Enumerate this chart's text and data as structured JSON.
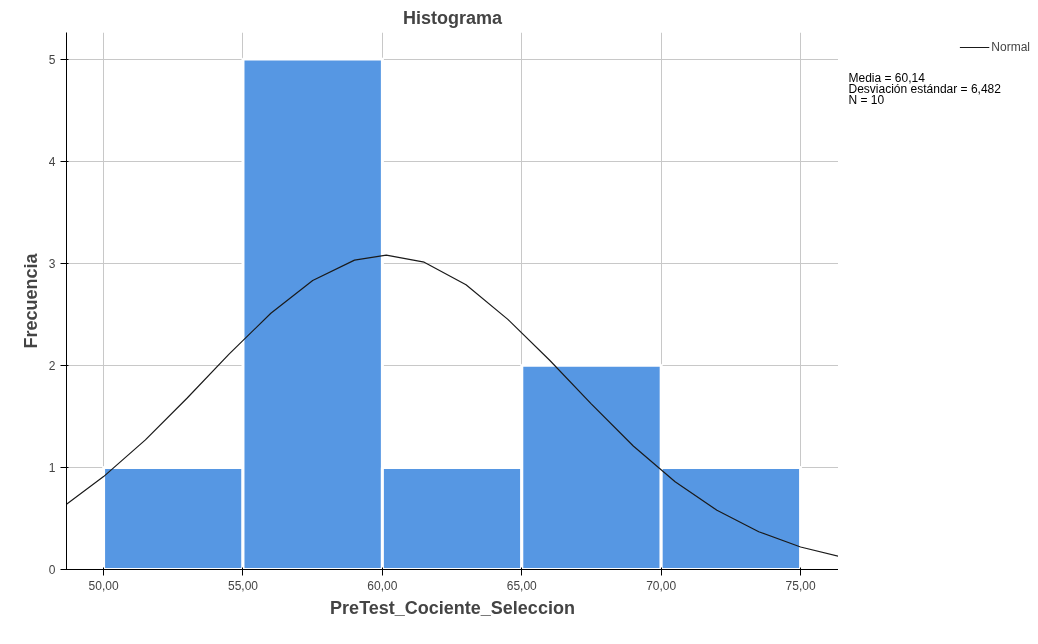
{
  "chart_data": {
    "type": "histogram",
    "title": "Histograma",
    "xlabel": "PreTest_Cociente_Seleccion",
    "ylabel": "Frecuencia",
    "bins": [
      50,
      55,
      60,
      65,
      70,
      75
    ],
    "values": [
      1,
      5,
      1,
      2,
      1
    ],
    "color": "#5697e3",
    "series": [
      {
        "name": "Normal",
        "type": "line",
        "color": "#1a1a1a",
        "x": [
          48.67,
          50,
          51.5,
          53,
          54.5,
          56,
          57.5,
          59,
          60.14,
          61.5,
          63,
          64.5,
          66,
          67.5,
          69,
          70.5,
          72,
          73.5,
          75,
          76.36
        ],
        "values": [
          0.64,
          0.91,
          1.27,
          1.68,
          2.11,
          2.51,
          2.83,
          3.03,
          3.08,
          3.01,
          2.79,
          2.45,
          2.05,
          1.62,
          1.21,
          0.86,
          0.58,
          0.37,
          0.22,
          0.13
        ]
      }
    ],
    "xlim": [
      48.67,
      76.36
    ],
    "ylim": [
      0,
      5.26
    ],
    "xticks": [
      {
        "value": 50,
        "label": "50,00"
      },
      {
        "value": 55,
        "label": "55,00"
      },
      {
        "value": 60,
        "label": "60,00"
      },
      {
        "value": 65,
        "label": "65,00"
      },
      {
        "value": 70,
        "label": "70,00"
      },
      {
        "value": 75,
        "label": "75,00"
      }
    ],
    "yticks": [
      0,
      1,
      2,
      3,
      4,
      5
    ],
    "annotations": [
      "Media = 60,14",
      "Desviación estándar = 6,482",
      "N = 10"
    ],
    "grid": true,
    "legend": "top right"
  }
}
